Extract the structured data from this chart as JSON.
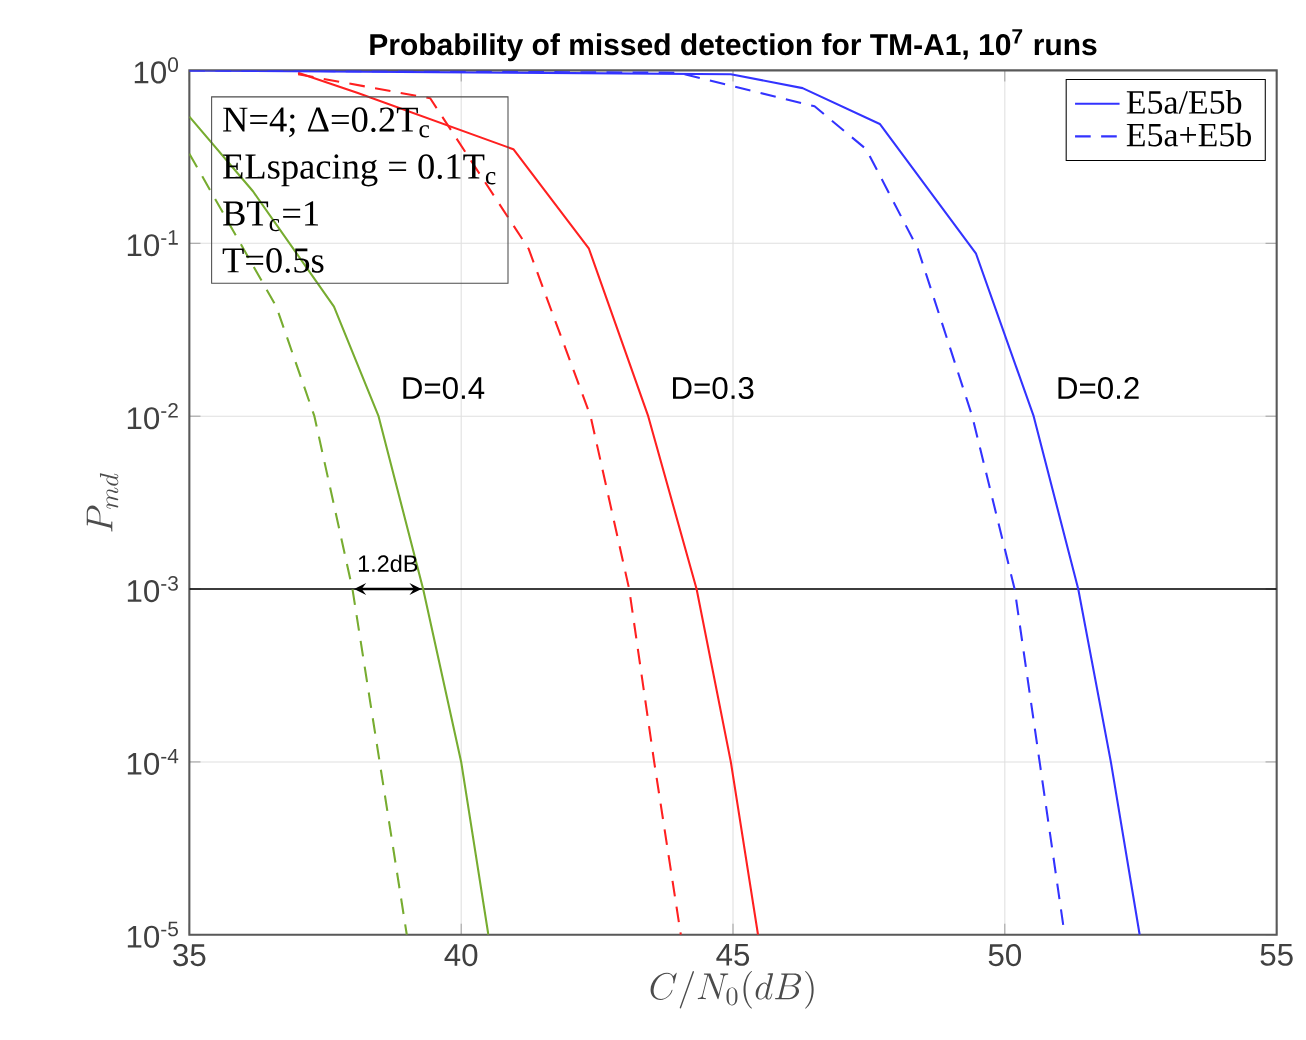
{
  "chart_data": {
    "type": "line",
    "title": "Probability of missed detection for TM-A1, 10$^{7}$ runs",
    "xlabel": "C/N_0(dB)",
    "ylabel": "P_{md}",
    "log": "y",
    "grid": true,
    "legend": "top right",
    "xlim": [
      35,
      55
    ],
    "xticks": [
      35,
      40,
      45,
      50,
      55
    ],
    "ylim": [
      1e-05,
      1
    ],
    "yticks": [
      {
        "value": 1e-05,
        "label": "10$^{-5}$"
      },
      {
        "value": 0.0001,
        "label": "10$^{-4}$"
      },
      {
        "value": 0.001,
        "label": "10$^{-3}$"
      },
      {
        "value": 0.01,
        "label": "10$^{-2}$"
      },
      {
        "value": 0.1,
        "label": "10$^{-1}$"
      },
      {
        "value": 1,
        "label": "10$^{0}$"
      }
    ],
    "series": [
      {
        "color": "#77ac30",
        "line_style": "solid",
        "x": [
          35,
          36.17,
          37.66,
          38.48,
          39.3,
          40.0,
          40.5
        ],
        "values": [
          0.54,
          0.2,
          0.043,
          0.01,
          0.001,
          0.0001,
          1e-05
        ]
      },
      {
        "color": "#77ac30",
        "line_style": "dashed",
        "x": [
          35,
          36.6,
          37.3,
          38.0,
          38.5,
          39.0
        ],
        "values": [
          0.33,
          0.043,
          0.01,
          0.001,
          0.0001,
          1e-05
        ]
      },
      {
        "color": "#ff2020",
        "line_style": "solid",
        "x": [
          37,
          38.1,
          40.96,
          42.35,
          43.44,
          44.33,
          44.96,
          45.46
        ],
        "values": [
          0.97,
          0.74,
          0.35,
          0.093,
          0.01,
          0.001,
          0.0001,
          1e-05
        ]
      },
      {
        "color": "#ff2020",
        "line_style": "dashed",
        "x": [
          37,
          39.43,
          41.24,
          41.67,
          42.38,
          43.09,
          43.55,
          44.04
        ],
        "values": [
          0.95,
          0.69,
          0.093,
          0.04,
          0.01,
          0.001,
          0.0001,
          1e-05
        ]
      },
      {
        "name": "E5a/E5b",
        "color": "#3333ff",
        "line_style": "solid",
        "x": [
          35,
          44.96,
          46.28,
          47.7,
          49.47,
          50.53,
          51.35,
          51.95,
          52.48
        ],
        "values": [
          1,
          0.95,
          0.79,
          0.49,
          0.087,
          0.01,
          0.001,
          0.0001,
          1e-05
        ]
      },
      {
        "name": "E5a+E5b",
        "color": "#3333ff",
        "line_style": "dashed",
        "x": [
          35,
          44,
          46.5,
          47.45,
          48.4,
          49.4,
          50.18,
          50.64,
          51.1
        ],
        "values": [
          1,
          0.97,
          0.62,
          0.35,
          0.093,
          0.01,
          0.001,
          0.0001,
          1e-05
        ]
      }
    ],
    "ref_lines": [
      {
        "axis": "y",
        "value": 0.001,
        "color": "#000000"
      }
    ],
    "annotations": [
      "N=4; Δ=0.2T$_{c}$",
      "ELspacing = 0.1T$_{c}$",
      "BT$_{c}$=1",
      "T=0.5s",
      {
        "text": "D=0.4",
        "x": 38.48,
        "y": 0.01
      },
      {
        "text": "D=0.3",
        "x": 43.44,
        "y": 0.01
      },
      {
        "text": "D=0.2",
        "x": 50.53,
        "y": 0.01
      },
      {
        "text": "1.2dB",
        "x": 38.65,
        "y": 0.001
      }
    ]
  }
}
